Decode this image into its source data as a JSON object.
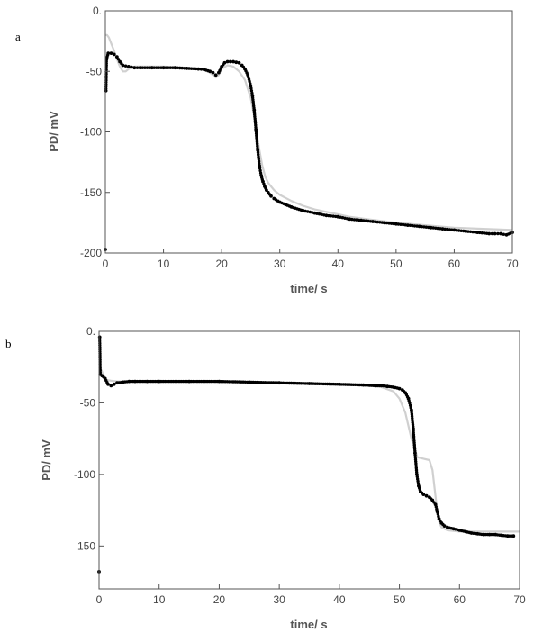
{
  "chart_data": [
    {
      "type": "scatter",
      "panel_label": "a",
      "xlabel": "time/ s",
      "ylabel": "PD/ mV",
      "xlim": [
        0,
        70
      ],
      "ylim": [
        -200,
        0
      ],
      "x_ticks": [
        0,
        10,
        20,
        30,
        40,
        50,
        60,
        70
      ],
      "x_tick_labels": [
        "0",
        "10",
        "20",
        "30",
        "40",
        "50",
        "60",
        "70"
      ],
      "y_ticks": [
        0,
        -50,
        -100,
        -150,
        -200
      ],
      "y_tick_labels": [
        "0.",
        "-50",
        "-100",
        "-150",
        "-200"
      ],
      "grid": false,
      "series": [
        {
          "style": "scatter",
          "color": "#000000",
          "x": [
            0,
            0.1,
            0.2,
            0.5,
            1,
            1.5,
            2,
            2.5,
            3,
            4,
            5,
            6,
            8,
            10,
            12,
            14,
            16,
            17,
            18,
            18.5,
            19,
            19.5,
            20,
            20.5,
            21,
            21.5,
            22,
            22.5,
            23,
            23.5,
            24,
            24.5,
            25,
            25.3,
            25.6,
            25.9,
            26.2,
            26.5,
            26.8,
            27.1,
            27.4,
            27.7,
            28,
            28.5,
            29,
            30,
            31,
            32,
            34,
            36,
            38,
            40,
            42,
            44,
            46,
            48,
            50,
            52,
            54,
            56,
            58,
            60,
            62,
            64,
            66,
            67,
            68,
            69,
            70
          ],
          "y": [
            -197,
            -66,
            -40,
            -35,
            -35,
            -36,
            -38,
            -42,
            -45,
            -46,
            -47,
            -47,
            -47,
            -47,
            -47,
            -47.5,
            -48,
            -48.5,
            -50,
            -51,
            -53,
            -51,
            -46,
            -43,
            -42,
            -42,
            -42,
            -42.5,
            -43,
            -45,
            -48,
            -53,
            -62,
            -70,
            -82,
            -98,
            -115,
            -128,
            -136,
            -141,
            -145,
            -148,
            -150,
            -153,
            -155,
            -158,
            -160,
            -162,
            -165,
            -167,
            -169,
            -170,
            -172,
            -173,
            -174,
            -175,
            -176,
            -177,
            -178,
            -179,
            -180,
            -181,
            -182,
            -183,
            -184,
            -184,
            -184,
            -185,
            -183
          ]
        },
        {
          "style": "line",
          "color": "#d0d0d0",
          "x": [
            0,
            0.3,
            0.6,
            1,
            1.5,
            2,
            2.5,
            3,
            3.5,
            4,
            5,
            6,
            8,
            10,
            12,
            14,
            16,
            17,
            18,
            18.5,
            19,
            19.5,
            20,
            21,
            22,
            23,
            24,
            25,
            25.5,
            26,
            26.5,
            27,
            27.5,
            28,
            29,
            30,
            32,
            34,
            36,
            38,
            40,
            42,
            45,
            50,
            55,
            60,
            65,
            70
          ],
          "y": [
            -20,
            -20,
            -22,
            -27,
            -33,
            -40,
            -46,
            -50,
            -50,
            -48,
            -46,
            -46,
            -46,
            -46,
            -46.5,
            -47,
            -48,
            -49,
            -51,
            -53,
            -55,
            -53,
            -48,
            -45,
            -46,
            -50,
            -57,
            -72,
            -85,
            -100,
            -115,
            -128,
            -137,
            -142,
            -148,
            -152,
            -157,
            -161,
            -164,
            -166,
            -168,
            -170,
            -172,
            -175,
            -177,
            -179,
            -180,
            -181
          ]
        }
      ]
    },
    {
      "type": "scatter",
      "panel_label": "b",
      "xlabel": "time/ s",
      "ylabel": "PD/ mV",
      "xlim": [
        0,
        70
      ],
      "ylim": [
        -180,
        0
      ],
      "x_ticks": [
        0,
        10,
        20,
        30,
        40,
        50,
        60,
        70
      ],
      "x_tick_labels": [
        "0",
        "10",
        "20",
        "30",
        "40",
        "50",
        "60",
        "70"
      ],
      "y_ticks": [
        0,
        -50,
        -100,
        -150
      ],
      "y_tick_labels": [
        "0.",
        "-50",
        "-100",
        "-150"
      ],
      "grid": false,
      "series": [
        {
          "style": "scatter",
          "color": "#000000",
          "x": [
            0,
            0.1,
            0.2,
            0.5,
            1,
            1.5,
            2,
            2.5,
            3,
            4,
            5,
            6,
            8,
            10,
            15,
            20,
            25,
            30,
            35,
            40,
            44,
            46,
            47,
            48,
            49,
            50,
            50.5,
            51,
            51.5,
            52,
            52.3,
            52.6,
            52.9,
            53.2,
            53.5,
            54,
            54.5,
            55,
            55.5,
            56,
            56.3,
            56.6,
            57,
            57.5,
            58,
            59,
            60,
            61,
            62,
            63,
            64,
            65,
            66,
            67,
            68,
            69
          ],
          "y": [
            -168,
            -4,
            -30,
            -31,
            -33,
            -37,
            -38,
            -37,
            -36,
            -35.5,
            -35,
            -35,
            -35,
            -35,
            -35,
            -35,
            -35.5,
            -36,
            -36.5,
            -37,
            -37.5,
            -38,
            -38,
            -38.5,
            -39,
            -40,
            -41,
            -43,
            -47,
            -55,
            -68,
            -85,
            -100,
            -108,
            -112,
            -114,
            -115,
            -116,
            -118,
            -121,
            -126,
            -131,
            -134,
            -136,
            -137,
            -138,
            -139,
            -140,
            -141,
            -141.5,
            -142,
            -142,
            -142,
            -142.5,
            -143,
            -143
          ]
        },
        {
          "style": "line",
          "color": "#d0d0d0",
          "x": [
            0,
            0.2,
            0.5,
            0.8,
            1.2,
            2,
            3,
            4,
            6,
            10,
            20,
            30,
            40,
            45,
            47,
            49,
            50,
            51,
            52,
            53,
            54,
            55,
            55.5,
            56,
            56.5,
            57,
            58,
            60,
            62,
            65,
            70
          ],
          "y": [
            -25,
            -26,
            -28,
            -32,
            -34,
            -34.5,
            -35,
            -35,
            -35,
            -35,
            -35,
            -36,
            -37,
            -38,
            -39,
            -42,
            -47,
            -57,
            -75,
            -88,
            -89,
            -90,
            -97,
            -115,
            -132,
            -137,
            -139,
            -140,
            -140,
            -140,
            -140
          ]
        }
      ]
    }
  ]
}
